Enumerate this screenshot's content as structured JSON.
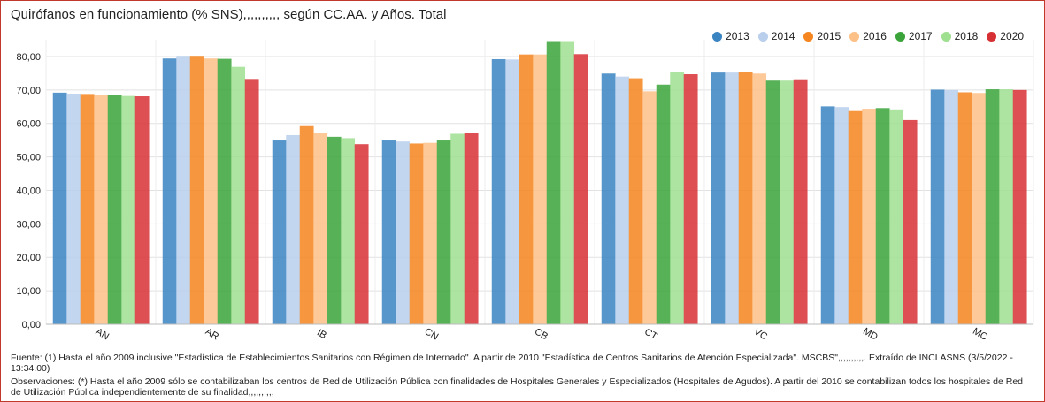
{
  "colors": {
    "frame_border": "#c0392b",
    "series": [
      "#3a84c2",
      "#b9cfec",
      "#f5851f",
      "#fdc086",
      "#3aa33a",
      "#9fdf90",
      "#d73034"
    ]
  },
  "chart_data": {
    "type": "bar",
    "title": "Quirófanos en funcionamiento (% SNS),,,,,,,,,, según CC.AA. y Años. Total",
    "categories": [
      "AN",
      "AR",
      "IB",
      "CN",
      "CB",
      "CT",
      "VC",
      "MD",
      "MC"
    ],
    "series": [
      {
        "name": "2013",
        "values": [
          69.2,
          79.4,
          54.9,
          54.9,
          79.2,
          74.9,
          75.2,
          65.1,
          70.1
        ]
      },
      {
        "name": "2014",
        "values": [
          68.9,
          80.2,
          56.5,
          54.6,
          79.1,
          74.0,
          75.2,
          64.9,
          70.0
        ]
      },
      {
        "name": "2015",
        "values": [
          68.8,
          80.2,
          59.2,
          54.0,
          80.6,
          73.5,
          75.4,
          63.7,
          69.3
        ]
      },
      {
        "name": "2016",
        "values": [
          68.4,
          79.4,
          57.2,
          54.2,
          80.6,
          69.6,
          74.9,
          64.4,
          69.1
        ]
      },
      {
        "name": "2017",
        "values": [
          68.5,
          79.3,
          56.0,
          54.9,
          84.6,
          71.6,
          72.8,
          64.6,
          70.2
        ]
      },
      {
        "name": "2018",
        "values": [
          68.2,
          76.9,
          55.6,
          56.9,
          84.6,
          75.3,
          72.8,
          64.2,
          70.2
        ]
      },
      {
        "name": "2020",
        "values": [
          68.1,
          73.3,
          53.8,
          57.1,
          80.7,
          74.7,
          73.2,
          61.0,
          70.0
        ]
      }
    ],
    "ylim": [
      0,
      85
    ],
    "yticks": [
      "0,00",
      "10,00",
      "20,00",
      "30,00",
      "40,00",
      "50,00",
      "60,00",
      "70,00",
      "80,00"
    ],
    "xlabel": "",
    "ylabel": "",
    "grid": true,
    "legend_position": "top-right"
  },
  "footer": {
    "source": "Fuente: (1) Hasta el año 2009 inclusive \"Estadística de Establecimientos Sanitarios con Régimen de Internado\". A partir de 2010 \"Estadística de Centros Sanitarios de Atención Especializada\". MSCBS\",,,,,,,,,,. Extraído de INCLASNS (3/5/2022 - 13:34.00)",
    "observations": "Observaciones: (*) Hasta el año 2009 sólo se contabilizaban los centros de Red de Utilización Pública con finalidades de Hospitales Generales y Especializados (Hospitales de Agudos). A partir del 2010 se contabilizan todos los hospitales de Red de Utilización Pública independientemente de su finalidad,,,,,,,,,,"
  }
}
